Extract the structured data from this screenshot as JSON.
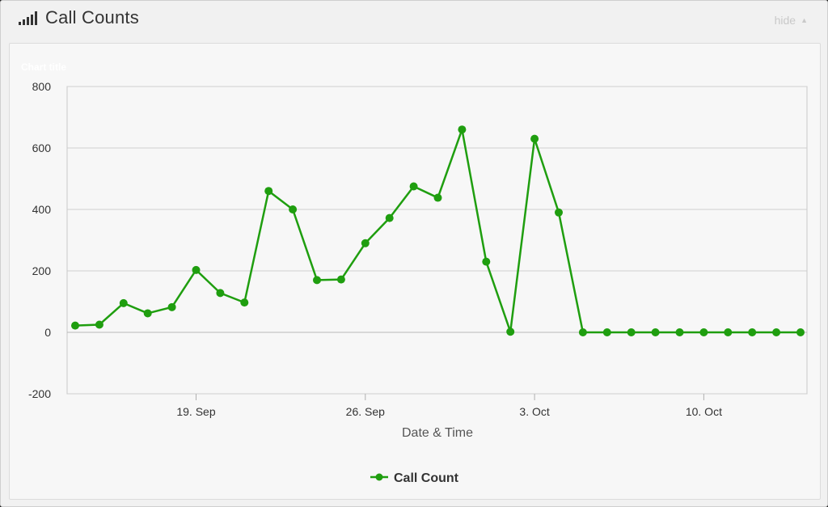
{
  "header": {
    "title": "Call Counts",
    "hide_label": "hide",
    "icon": "signal-bars-icon"
  },
  "chart_data": {
    "type": "line",
    "title": "Chart title",
    "xlabel": "Date & Time",
    "ylabel": "",
    "ylim": [
      -200,
      800
    ],
    "yticks": [
      800,
      600,
      400,
      200,
      0,
      -200
    ],
    "xticks": [
      "19. Sep",
      "26. Sep",
      "3. Oct",
      "10. Oct"
    ],
    "grid": true,
    "legend": "bottom-center",
    "color": "#1f9e0f",
    "series": [
      {
        "name": "Call Count",
        "values": [
          22,
          25,
          95,
          62,
          82,
          203,
          128,
          97,
          460,
          400,
          170,
          172,
          290,
          372,
          475,
          438,
          660,
          230,
          2,
          630,
          390,
          0,
          0,
          0,
          0,
          0,
          0,
          0,
          0,
          0,
          0
        ]
      }
    ]
  }
}
